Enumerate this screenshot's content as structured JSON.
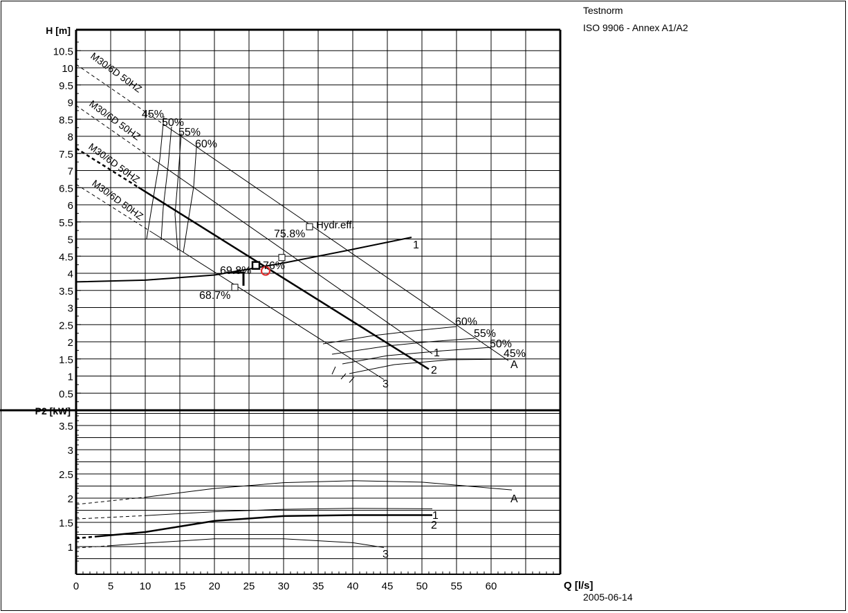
{
  "header": {
    "standard_label": "Testnorm",
    "standard_value": "ISO 9906 - Annex A1/A2"
  },
  "footer": {
    "date": "2005-06-14"
  },
  "colors": {
    "grid": "#000000",
    "duty_point": "#e03030",
    "thin_line": "#000000"
  },
  "chart_data": [
    {
      "type": "line",
      "ylabel": "H [m]",
      "xlim": [
        0,
        65
      ],
      "ylim": [
        0,
        11
      ],
      "x_ticks": [
        0,
        5,
        10,
        15,
        20,
        25,
        30,
        35,
        40,
        45,
        50,
        55,
        60
      ],
      "y_ticks": [
        "0.5",
        "1",
        "1.5",
        "2",
        "2.5",
        "3",
        "3.5",
        "4",
        "4.5",
        "5",
        "5.5",
        "6",
        "6.5",
        "7",
        "7.5",
        "8",
        "8.5",
        "9",
        "9.5",
        "10",
        "10.5"
      ],
      "pump_curves": [
        {
          "name": "A",
          "label": "M30/6D 50HZ",
          "values": [
            [
              0,
              10.1
            ],
            [
              62.5,
              1.45
            ]
          ]
        },
        {
          "name": "1",
          "label": "M30/6D 50HZ",
          "values": [
            [
              0,
              8.9
            ],
            [
              51.5,
              1.65
            ]
          ]
        },
        {
          "name": "2",
          "label": "M30/6D 50HZ",
          "values": [
            [
              0,
              7.65
            ],
            [
              51,
              1.2
            ]
          ]
        },
        {
          "name": "3",
          "label": "M30/6D 50HZ",
          "values": [
            [
              0,
              6.6
            ],
            [
              44.5,
              0.9
            ]
          ]
        }
      ],
      "system_curve": {
        "name": "1",
        "values": [
          [
            0,
            3.75
          ],
          [
            10,
            3.8
          ],
          [
            20,
            3.95
          ],
          [
            30,
            4.3
          ],
          [
            40,
            4.7
          ],
          [
            48.5,
            5.05
          ]
        ]
      },
      "efficiency_labels": [
        "45%",
        "50%",
        "55%",
        "60%"
      ],
      "duty_points": [
        {
          "label": "75.8%",
          "note": "Hydr.eff.",
          "x": 33.8,
          "y": 5.35
        },
        {
          "label": "69.8%",
          "x": 26,
          "y": 4.25
        },
        {
          "label": "68.7%",
          "x": 23,
          "y": 3.6
        },
        {
          "label": "76%",
          "x": 27.5,
          "y": 4.15
        }
      ]
    },
    {
      "type": "line",
      "ylabel": "P2 [kW]",
      "xlabel": "Q [l/s]",
      "xlim": [
        0,
        65
      ],
      "ylim": [
        0.5,
        3.9
      ],
      "x_ticks": [
        0,
        5,
        10,
        15,
        20,
        25,
        30,
        35,
        40,
        45,
        50,
        55,
        60
      ],
      "y_ticks": [
        "1",
        "1.5",
        "2",
        "2.5",
        "3",
        "3.5"
      ],
      "series": [
        {
          "name": "A",
          "values": [
            [
              0,
              1.87
            ],
            [
              10,
              2.02
            ],
            [
              20,
              2.2
            ],
            [
              30,
              2.32
            ],
            [
              40,
              2.36
            ],
            [
              50,
              2.33
            ],
            [
              63,
              2.17
            ]
          ]
        },
        {
          "name": "1",
          "values": [
            [
              0,
              1.57
            ],
            [
              10,
              1.64
            ],
            [
              20,
              1.72
            ],
            [
              30,
              1.77
            ],
            [
              40,
              1.79
            ],
            [
              51.5,
              1.78
            ]
          ]
        },
        {
          "name": "2",
          "values": [
            [
              0,
              1.17
            ],
            [
              10,
              1.3
            ],
            [
              20,
              1.53
            ],
            [
              30,
              1.63
            ],
            [
              40,
              1.65
            ],
            [
              51.5,
              1.65
            ]
          ]
        },
        {
          "name": "3",
          "values": [
            [
              0,
              0.97
            ],
            [
              10,
              1.07
            ],
            [
              20,
              1.16
            ],
            [
              30,
              1.16
            ],
            [
              40,
              1.08
            ],
            [
              44.5,
              0.98
            ]
          ]
        }
      ]
    }
  ]
}
